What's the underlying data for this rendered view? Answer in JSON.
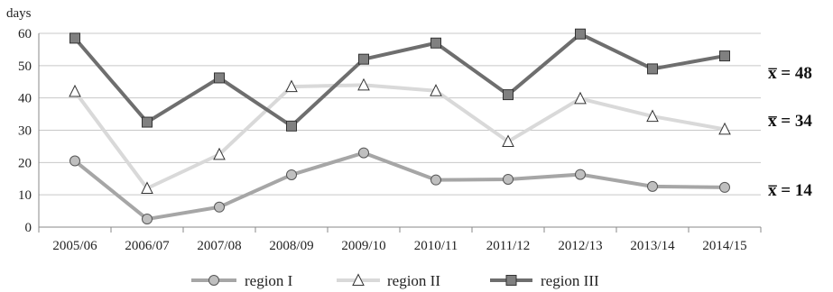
{
  "chart_data": {
    "type": "line",
    "ylabel": "days",
    "ylim": [
      0,
      60
    ],
    "yticks": [
      0,
      10,
      20,
      30,
      40,
      50,
      60
    ],
    "grid": true,
    "legend_position": "bottom",
    "categories": [
      "2005/06",
      "2006/07",
      "2007/08",
      "2008/09",
      "2009/10",
      "2010/11",
      "2011/12",
      "2012/13",
      "2013/14",
      "2014/15"
    ],
    "series": [
      {
        "name": "region I",
        "marker": "circle",
        "color": "#a6a6a6",
        "markerFill": "#bfbfbf",
        "values": [
          20.5,
          2.5,
          6.2,
          16.2,
          23,
          14.6,
          14.8,
          16.3,
          12.6,
          12.3
        ],
        "mean_label": "x̅ = 14"
      },
      {
        "name": "region II",
        "marker": "triangle",
        "color": "#d9d9d9",
        "markerFill": "#ffffff",
        "values": [
          42,
          12,
          22.5,
          43.5,
          44,
          42.2,
          26.5,
          39.8,
          34.3,
          30.3
        ],
        "mean_label": "x̅ = 34"
      },
      {
        "name": "region III",
        "marker": "square",
        "color": "#6e6e6e",
        "markerFill": "#808080",
        "values": [
          58.5,
          32.5,
          46.2,
          31.3,
          52,
          57,
          41,
          59.8,
          49,
          53
        ],
        "mean_label": "x̅ = 48"
      }
    ]
  }
}
